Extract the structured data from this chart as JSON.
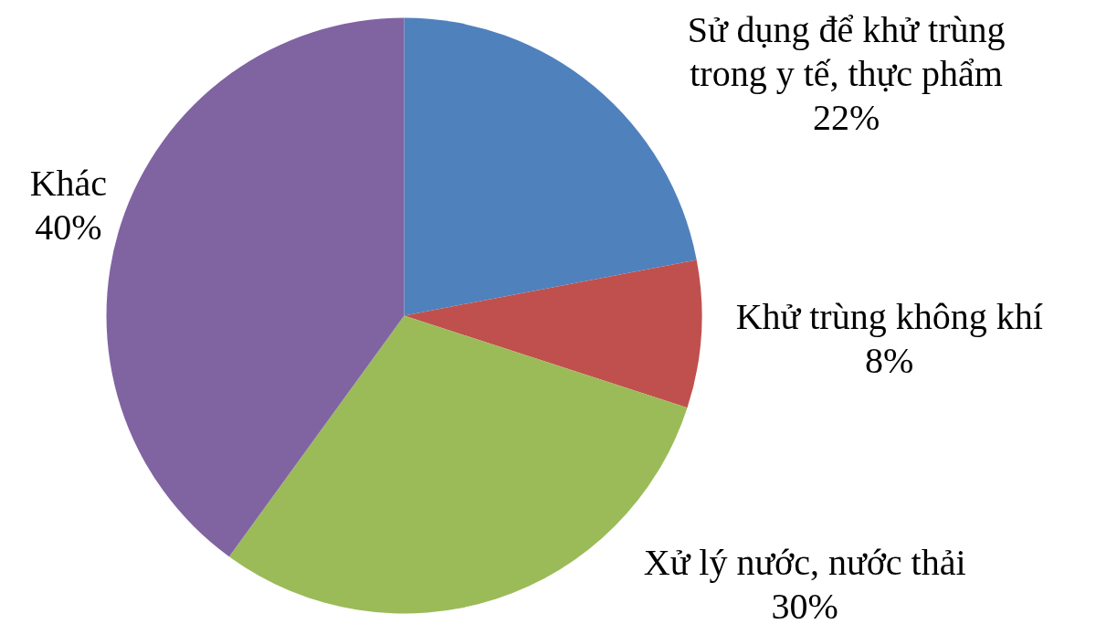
{
  "chart_data": {
    "type": "pie",
    "categories": [
      "Sử dụng để khử trùng trong y tế, thực phẩm",
      "Khử trùng không khí",
      "Xử lý nước, nước thải",
      "Khác"
    ],
    "values": [
      22,
      8,
      30,
      40
    ],
    "colors": [
      "#4f81bd",
      "#c0504d",
      "#9bbb59",
      "#8064a2"
    ],
    "value_labels": [
      "22%",
      "8%",
      "30%",
      "40%"
    ]
  }
}
